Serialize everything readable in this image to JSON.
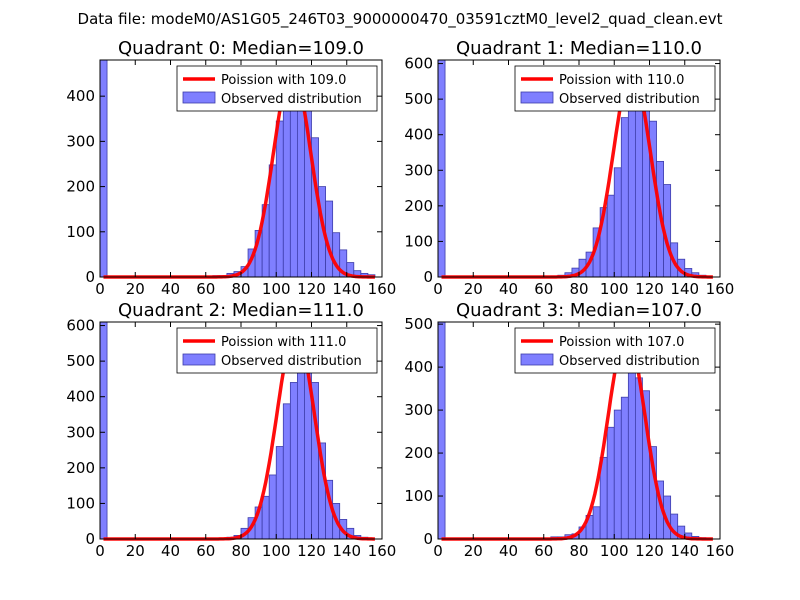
{
  "figure": {
    "suptitle": "Data file: modeM0/AS1G05_246T03_9000000470_03591cztM0_level2_quad_clean.evt"
  },
  "colors": {
    "bar_fill": "#7f7fff",
    "bar_edge": "#3d3daa",
    "curve": "#ff0000"
  },
  "chart_data": [
    {
      "type": "bar",
      "title": "Quadrant 0: Median=109.0",
      "bin_width": 4,
      "xlim": [
        0,
        160
      ],
      "ylim": [
        0,
        480
      ],
      "xticks": [
        0,
        20,
        40,
        60,
        80,
        100,
        120,
        140,
        160
      ],
      "yticks": [
        0,
        100,
        200,
        300,
        400
      ],
      "bins": [
        0,
        64,
        68,
        72,
        76,
        80,
        84,
        88,
        92,
        96,
        100,
        104,
        108,
        112,
        116,
        120,
        124,
        128,
        132,
        136,
        140,
        144,
        148,
        152
      ],
      "counts": [
        480,
        3,
        3,
        8,
        12,
        23,
        62,
        103,
        160,
        248,
        345,
        368,
        395,
        458,
        380,
        308,
        200,
        168,
        98,
        60,
        32,
        14,
        8,
        5
      ],
      "fit_lambda": 109.0,
      "fit_peak": 460,
      "legend": [
        "Poission with 109.0",
        "Observed distribution"
      ]
    },
    {
      "type": "bar",
      "title": "Quadrant 1: Median=110.0",
      "bin_width": 4,
      "xlim": [
        0,
        160
      ],
      "ylim": [
        0,
        610
      ],
      "xticks": [
        0,
        20,
        40,
        60,
        80,
        100,
        120,
        140,
        160
      ],
      "yticks": [
        0,
        100,
        200,
        300,
        400,
        500,
        600
      ],
      "bins": [
        0,
        64,
        68,
        72,
        76,
        80,
        84,
        88,
        92,
        96,
        100,
        104,
        108,
        112,
        116,
        120,
        124,
        128,
        132,
        136,
        140,
        144,
        148
      ],
      "counts": [
        610,
        3,
        5,
        12,
        25,
        50,
        70,
        138,
        195,
        230,
        307,
        448,
        530,
        562,
        535,
        438,
        325,
        260,
        96,
        50,
        24,
        12,
        5
      ],
      "fit_lambda": 110.0,
      "fit_peak": 580,
      "legend": [
        "Poission with 110.0",
        "Observed distribution"
      ]
    },
    {
      "type": "bar",
      "title": "Quadrant 2: Median=111.0",
      "bin_width": 4,
      "xlim": [
        0,
        160
      ],
      "ylim": [
        0,
        610
      ],
      "xticks": [
        0,
        20,
        40,
        60,
        80,
        100,
        120,
        140,
        160
      ],
      "yticks": [
        0,
        100,
        200,
        300,
        400,
        500,
        600
      ],
      "bins": [
        0,
        72,
        76,
        80,
        84,
        88,
        92,
        96,
        100,
        104,
        108,
        112,
        116,
        120,
        124,
        128,
        132,
        136,
        140,
        144,
        148
      ],
      "counts": [
        610,
        5,
        10,
        30,
        60,
        90,
        120,
        180,
        260,
        380,
        440,
        590,
        480,
        440,
        270,
        165,
        100,
        55,
        30,
        10,
        5
      ],
      "fit_lambda": 111.0,
      "fit_peak": 585,
      "legend": [
        "Poission with 111.0",
        "Observed distribution"
      ]
    },
    {
      "type": "bar",
      "title": "Quadrant 3: Median=107.0",
      "bin_width": 4,
      "xlim": [
        0,
        160
      ],
      "ylim": [
        0,
        505
      ],
      "xticks": [
        0,
        20,
        40,
        60,
        80,
        100,
        120,
        140,
        160
      ],
      "yticks": [
        0,
        100,
        200,
        300,
        400,
        500
      ],
      "bins": [
        0,
        64,
        68,
        72,
        76,
        80,
        84,
        88,
        92,
        96,
        100,
        104,
        108,
        112,
        116,
        120,
        124,
        128,
        132,
        136,
        140,
        144,
        148
      ],
      "counts": [
        505,
        5,
        5,
        10,
        12,
        28,
        55,
        75,
        190,
        260,
        300,
        330,
        460,
        375,
        345,
        215,
        135,
        100,
        58,
        30,
        14,
        6,
        3
      ],
      "fit_lambda": 107.0,
      "fit_peak": 478,
      "legend": [
        "Poission with 107.0",
        "Observed distribution"
      ]
    }
  ]
}
